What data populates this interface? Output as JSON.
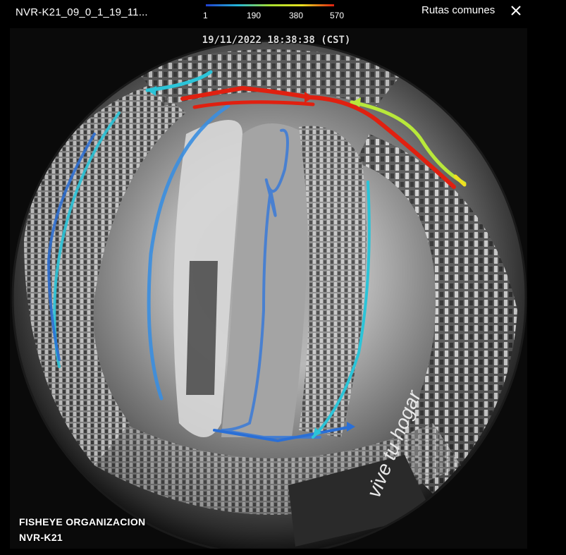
{
  "header": {
    "camera_title": "NVR-K21_09_0_1_19_11...",
    "routes_button_label": "Rutas comunes",
    "close_icon": "close-icon"
  },
  "legend": {
    "ticks": [
      "1",
      "190",
      "380",
      "570"
    ],
    "colors": [
      "#2040d0",
      "#25b8d8",
      "#a8e030",
      "#e8e020",
      "#e02010"
    ]
  },
  "viewer": {
    "timestamp": "19/11/2022 18:38:38 (CST)",
    "overlay_line1": "FISHEYE ORGANIZACION",
    "overlay_line2": "NVR-K21",
    "sign_text": "vive tu hogar",
    "route_colors": {
      "low": "#2a6fd6",
      "mid": "#2bc4d8",
      "high_mid": "#b8e83a",
      "warm": "#f0e020",
      "high": "#e02010"
    }
  }
}
